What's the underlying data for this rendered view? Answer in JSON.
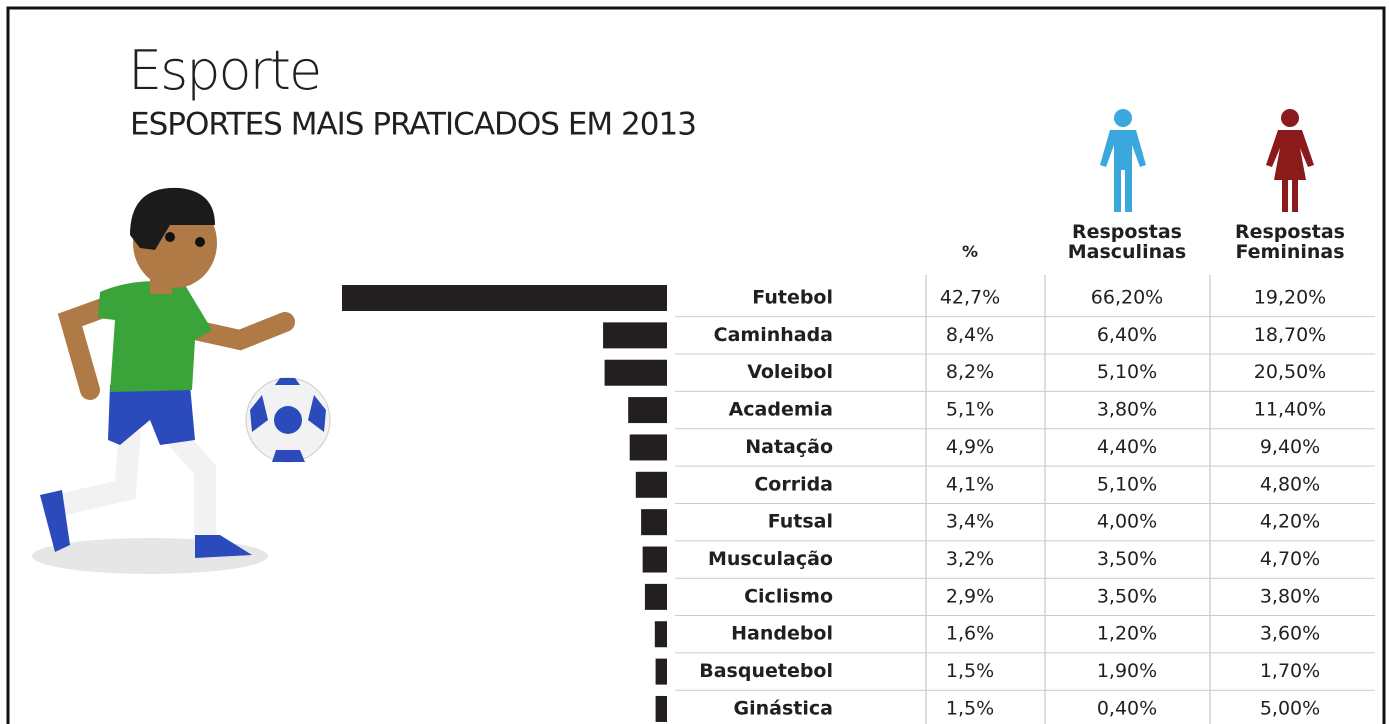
{
  "chart_data": {
    "type": "bar",
    "title": "Esporte",
    "subtitle": "ESPORTES MAIS PRATICADOS EM 2013",
    "color": "#231f20",
    "categories": [
      "Futebol",
      "Caminhada",
      "Voleibol",
      "Academia",
      "Natação",
      "Corrida",
      "Futsal",
      "Musculação",
      "Ciclismo",
      "Handebol",
      "Basquetebol",
      "Ginástica"
    ],
    "series": [
      {
        "name": "%",
        "values": [
          42.7,
          8.4,
          8.2,
          5.1,
          4.9,
          4.1,
          3.4,
          3.2,
          2.9,
          1.6,
          1.5,
          1.5
        ],
        "value_labels": [
          "42,7%",
          "8,4%",
          "8,2%",
          "5,1%",
          "4,9%",
          "4,1%",
          "3,4%",
          "3,2%",
          "2,9%",
          "1,6%",
          "1,5%",
          "1,5%"
        ]
      },
      {
        "name": "Respostas Masculinas",
        "color": "#3aa8dd",
        "values": [
          66.2,
          6.4,
          5.1,
          3.8,
          4.4,
          5.1,
          4.0,
          3.5,
          3.5,
          1.2,
          1.9,
          0.4
        ],
        "value_labels": [
          "66,20%",
          "6,40%",
          "5,10%",
          "3,80%",
          "4,40%",
          "5,10%",
          "4,00%",
          "3,50%",
          "3,50%",
          "1,20%",
          "1,90%",
          "0,40%"
        ]
      },
      {
        "name": "Respostas Femininas",
        "color": "#8b1a1a",
        "values": [
          19.2,
          18.7,
          20.5,
          11.4,
          9.4,
          4.8,
          4.2,
          4.7,
          3.8,
          3.6,
          1.7,
          5.0
        ],
        "value_labels": [
          "19,20%",
          "18,70%",
          "20,50%",
          "11,40%",
          "9,40%",
          "4,80%",
          "4,20%",
          "4,70%",
          "3,80%",
          "3,60%",
          "1,70%",
          "5,00%"
        ]
      }
    ]
  }
}
